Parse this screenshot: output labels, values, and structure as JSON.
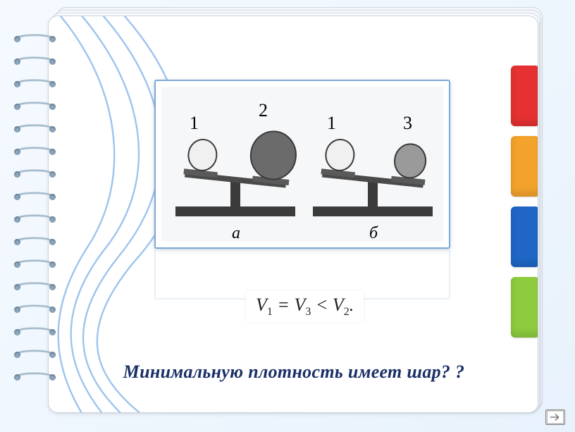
{
  "tabs": {
    "colors": [
      "#e53131",
      "#f3a22c",
      "#1f66c6",
      "#8ecb3f"
    ]
  },
  "figure": {
    "panel_border": "#7ea8d8",
    "bg": "#f6f7f8",
    "scales": [
      {
        "label": "а",
        "left_num": "1",
        "right_num": "2",
        "ball_left": {
          "r": 22,
          "fill": "#f0f0f0",
          "stroke": "#3a3a3a"
        },
        "ball_right": {
          "r": 34,
          "fill": "#6b6b6b",
          "stroke": "#3a3a3a"
        },
        "tilt": 6
      },
      {
        "label": "б",
        "left_num": "1",
        "right_num": "3",
        "ball_left": {
          "r": 22,
          "fill": "#f0f0f0",
          "stroke": "#3a3a3a"
        },
        "ball_right": {
          "r": 24,
          "fill": "#9a9a9a",
          "stroke": "#3a3a3a"
        },
        "tilt": 6
      }
    ],
    "scale_style": {
      "base_fill": "#3b3b3b",
      "beam_fill": "#4a4a4a",
      "pan_fill": "#5a5a5a"
    }
  },
  "formula": {
    "text_parts": [
      "V",
      "1",
      " = ",
      "V",
      "3",
      " < ",
      "V",
      "2",
      "."
    ]
  },
  "question": "Минимальную  плотность имеет шар? ?",
  "swirl_color": "#6fa8e6",
  "spiral": {
    "count": 16,
    "spacing": 32,
    "ring_color": "#9fb6c9",
    "wire_color": "#cfdce6"
  }
}
